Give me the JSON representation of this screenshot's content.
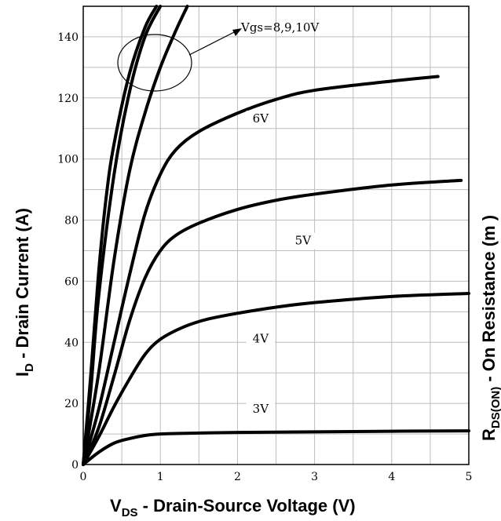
{
  "chart_data": {
    "type": "line",
    "title": "",
    "xlabel_main": "V",
    "xlabel_sub": "DS",
    "xlabel_rest": " - Drain-Source Voltage (V)",
    "ylabel_main": "I",
    "ylabel_sub": "D",
    "ylabel_rest": " - Drain Current (A)",
    "right_label_main": "R",
    "right_label_sub": "DS(ON)",
    "right_label_rest": " - On Resistance (m  )",
    "xlim": [
      0,
      5
    ],
    "ylim": [
      0,
      150
    ],
    "x_ticks": [
      "0",
      "1",
      "2",
      "3",
      "4",
      "5"
    ],
    "y_ticks": [
      "0",
      "20",
      "40",
      "60",
      "80",
      "100",
      "120",
      "140"
    ],
    "grid": true,
    "series": [
      {
        "label": "3V",
        "x": [
          0,
          0.2,
          0.4,
          0.6,
          0.8,
          1.0,
          1.5,
          2.0,
          3.0,
          4.0,
          5.0
        ],
        "y": [
          0,
          4,
          7,
          8.5,
          9.5,
          10,
          10.3,
          10.5,
          10.7,
          10.9,
          11
        ]
      },
      {
        "label": "4V",
        "x": [
          0,
          0.2,
          0.4,
          0.6,
          0.8,
          1.0,
          1.3,
          1.6,
          2.0,
          2.5,
          3.0,
          4.0,
          5.0
        ],
        "y": [
          0,
          9,
          19,
          28,
          36,
          41,
          45,
          47.5,
          49.5,
          51.5,
          53,
          55,
          56
        ]
      },
      {
        "label": "5V",
        "x": [
          0,
          0.2,
          0.4,
          0.6,
          0.8,
          1.0,
          1.2,
          1.5,
          2.0,
          2.5,
          3.0,
          4.0,
          4.9
        ],
        "y": [
          0,
          12,
          29,
          47,
          61,
          70,
          75,
          79,
          83.5,
          86.5,
          88.5,
          91.5,
          93
        ]
      },
      {
        "label": "6V",
        "x": [
          0,
          0.2,
          0.4,
          0.6,
          0.8,
          1.0,
          1.2,
          1.5,
          2.0,
          2.5,
          3.0,
          4.0,
          4.6
        ],
        "y": [
          0,
          18,
          40,
          62,
          82,
          95,
          103,
          109,
          115,
          119.5,
          122.5,
          125.5,
          127
        ]
      },
      {
        "label": "8V",
        "x": [
          0,
          0.2,
          0.4,
          0.6,
          0.8,
          1.0,
          1.2,
          1.35
        ],
        "y": [
          0,
          30,
          67,
          96,
          115,
          130,
          142,
          150
        ]
      },
      {
        "label": "9V",
        "x": [
          0,
          0.1,
          0.2,
          0.4,
          0.6,
          0.8,
          1.0
        ],
        "y": [
          0,
          25,
          55,
          95,
          122,
          140,
          150
        ]
      },
      {
        "label": "10V",
        "x": [
          0,
          0.1,
          0.2,
          0.3,
          0.4,
          0.6,
          0.8,
          0.95
        ],
        "y": [
          0,
          30,
          63,
          88,
          105,
          128,
          143,
          150
        ]
      }
    ],
    "annotations": {
      "vgs_text": "Vgs=8,9,10V",
      "labels": [
        "6V",
        "5V",
        "4V",
        "3V"
      ]
    }
  }
}
